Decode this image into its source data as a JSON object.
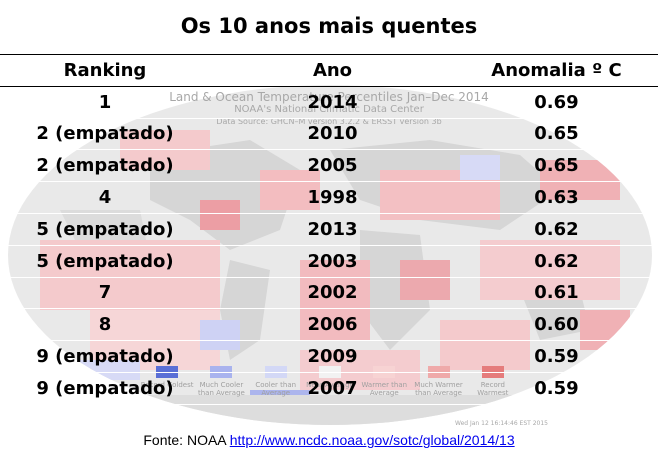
{
  "title": "Os 10 anos mais quentes",
  "table": {
    "headers": [
      "Ranking",
      "Ano",
      "Anomalia º C"
    ],
    "rows": [
      {
        "rank": "1",
        "year": "2014",
        "anomaly": "0.69"
      },
      {
        "rank": "2 (empatado)",
        "year": "2010",
        "anomaly": "0.65"
      },
      {
        "rank": "2 (empatado)",
        "year": "2005",
        "anomaly": "0.65"
      },
      {
        "rank": "4",
        "year": "1998",
        "anomaly": "0.63"
      },
      {
        "rank": "5 (empatado)",
        "year": "2013",
        "anomaly": "0.62"
      },
      {
        "rank": "5 (empatado)",
        "year": "2003",
        "anomaly": "0.62"
      },
      {
        "rank": "7",
        "year": "2002",
        "anomaly": "0.61"
      },
      {
        "rank": "8",
        "year": "2006",
        "anomaly": "0.60"
      },
      {
        "rank": "9 (empatado)",
        "year": "2009",
        "anomaly": "0.59"
      },
      {
        "rank": "9 (empatado)",
        "year": "2007",
        "anomaly": "0.59"
      }
    ]
  },
  "background_map": {
    "title": "Land & Ocean Temperature Percentiles Jan–Dec 2014",
    "center": "NOAA's National Climatic Data Center",
    "source": "Data Source: GHCN–M version 3.2.2 & ERSST version 3b",
    "stamp": "Wed Jan 12 16:14:46 EST 2015",
    "legend": [
      {
        "label": "Record Coldest",
        "color": "#5a6fd6"
      },
      {
        "label": "Much Cooler than Average",
        "color": "#a9b3ee"
      },
      {
        "label": "Cooler than Average",
        "color": "#d3d8f6"
      },
      {
        "label": "Near Average",
        "color": "#f2f2f2"
      },
      {
        "label": "Warmer than Average",
        "color": "#f7d3d3"
      },
      {
        "label": "Much Warmer than Average",
        "color": "#efaaaa"
      },
      {
        "label": "Record Warmest",
        "color": "#e57c7c"
      }
    ]
  },
  "footer": {
    "prefix": "Fonte: NOAA ",
    "link_text": "http://www.ncdc.noaa.gov/sotc/global/2014/13",
    "link_color": "#0000ee"
  },
  "colors": {
    "map_warm": "#f2b9bc",
    "map_land_gray": "#c9c9c9",
    "map_cool": "#c9ccf2"
  }
}
